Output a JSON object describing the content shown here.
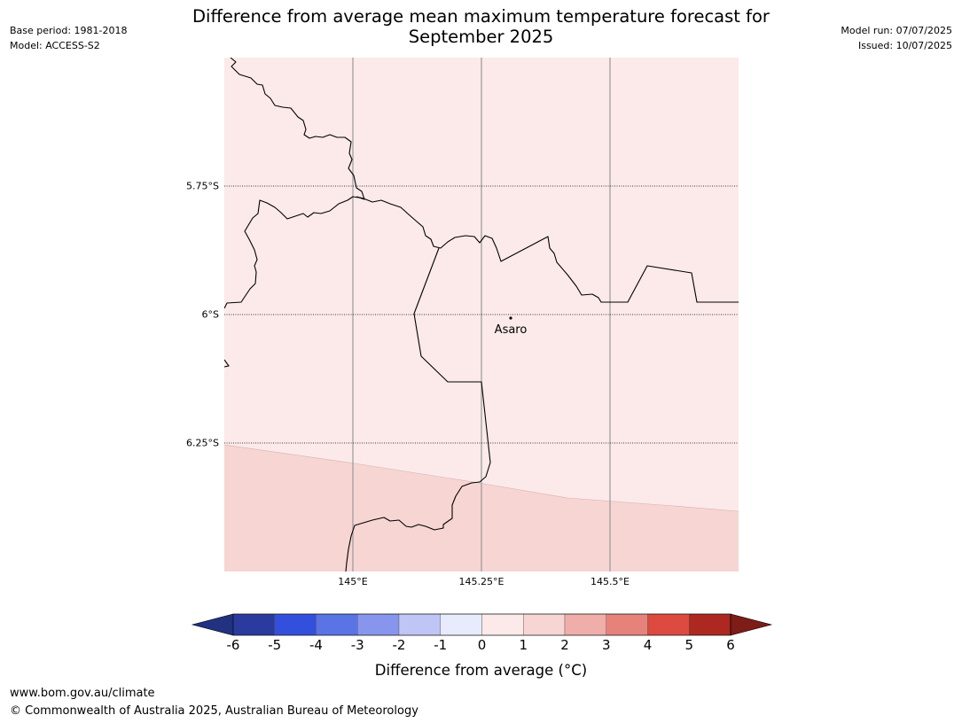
{
  "title": {
    "line1": "Difference from average mean maximum temperature forecast for",
    "line2": "September 2025"
  },
  "meta_left": {
    "base_period": "Base period: 1981-2018",
    "model": "Model: ACCESS-S2"
  },
  "meta_right": {
    "model_run": "Model run: 07/07/2025",
    "issued": "Issued: 10/07/2025"
  },
  "map": {
    "lat_labels": [
      "5.75°S",
      "6°S",
      "6.25°S"
    ],
    "lon_labels": [
      "145°E",
      "145.25°E",
      "145.5°E"
    ],
    "city": {
      "name": "Asaro"
    },
    "fill_colors": {
      "zero_to_one": "#fbeae9",
      "one_to_two": "#f6d5d3"
    },
    "border_color": "#000000"
  },
  "colorbar": {
    "ticks": [
      "-6",
      "-5",
      "-4",
      "-3",
      "-2",
      "-1",
      "0",
      "1",
      "2",
      "3",
      "4",
      "5",
      "6"
    ],
    "colors": [
      "#2b3a9e",
      "#3350dd",
      "#5a73e5",
      "#8796ec",
      "#bfc6f5",
      "#e8ebfb",
      "#fbeae9",
      "#f6d5d3",
      "#efaea9",
      "#e7827b",
      "#dd4a3f",
      "#ad2820"
    ],
    "low_extend_color": "#203280",
    "high_extend_color": "#7e1c17",
    "label": "Difference from average ($^\\circ$C)",
    "label_display": "Difference from average (°C)"
  },
  "footer": {
    "url": "www.bom.gov.au/climate",
    "copyright": "© Commonwealth of Australia 2025, Australian Bureau of Meteorology"
  }
}
